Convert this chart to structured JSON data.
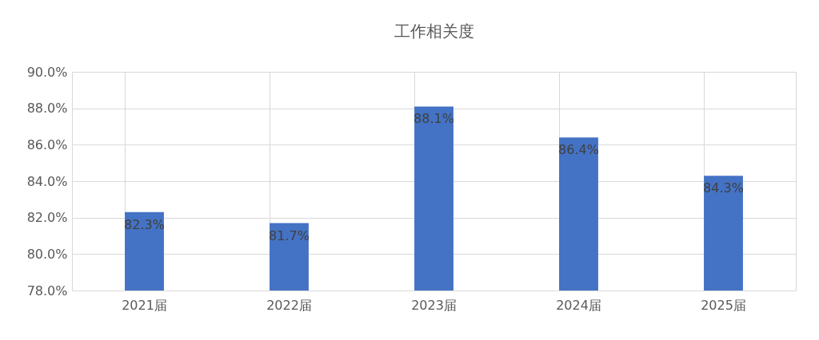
{
  "chart_data": {
    "type": "bar",
    "title": "工作相关度",
    "categories": [
      "2021届",
      "2022届",
      "2023届",
      "2024届",
      "2025届"
    ],
    "values": [
      82.3,
      81.7,
      88.1,
      86.4,
      84.3
    ],
    "value_labels": [
      "82.3%",
      "81.7%",
      "88.1%",
      "86.4%",
      "84.3%"
    ],
    "color": "#4472c4",
    "ylim": [
      78,
      90
    ],
    "yticks": [
      {
        "value": 78,
        "label": "78.0%"
      },
      {
        "value": 80,
        "label": "80.0%"
      },
      {
        "value": 82,
        "label": "82.0%"
      },
      {
        "value": 84,
        "label": "84.0%"
      },
      {
        "value": 86,
        "label": "86.0%"
      },
      {
        "value": 88,
        "label": "88.0%"
      },
      {
        "value": 90,
        "label": "90.0%"
      }
    ],
    "grid": true
  }
}
